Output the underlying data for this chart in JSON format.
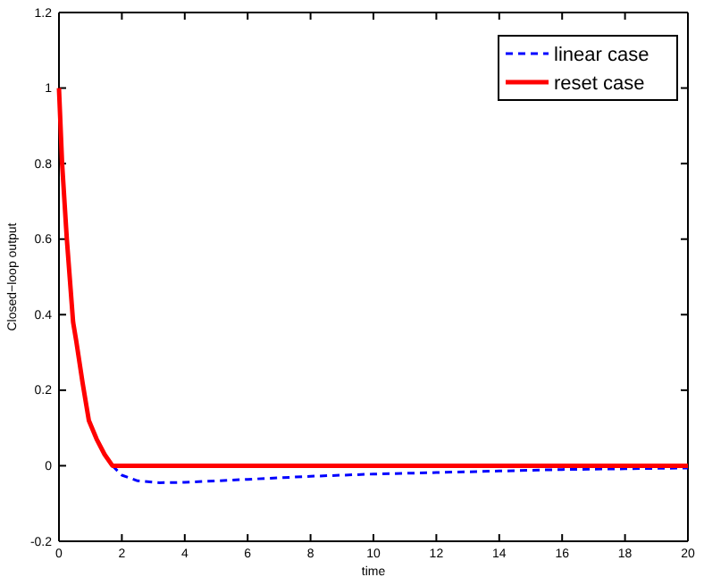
{
  "chart_data": {
    "type": "line",
    "xlabel": "time",
    "ylabel": "Closed−loop output",
    "xlim": [
      0,
      20
    ],
    "ylim": [
      -0.2,
      1.2
    ],
    "xticks": [
      0,
      2,
      4,
      6,
      8,
      10,
      12,
      14,
      16,
      18,
      20
    ],
    "yticks": [
      -0.2,
      0,
      0.2,
      0.4,
      0.6,
      0.8,
      1,
      1.2
    ],
    "legend": "top right",
    "series": [
      {
        "name": "linear case",
        "color": "#0000ff",
        "line_style": "dashed",
        "x": [
          1.7,
          2,
          2.5,
          3.2,
          4,
          6,
          8,
          10,
          12,
          14,
          16,
          18,
          20
        ],
        "values": [
          0,
          -0.025,
          -0.04,
          -0.045,
          -0.044,
          -0.036,
          -0.028,
          -0.022,
          -0.018,
          -0.014,
          -0.01,
          -0.008,
          -0.006
        ]
      },
      {
        "name": "reset case",
        "color": "#ff0000",
        "line_style": "solid",
        "x": [
          0,
          0.1,
          0.25,
          0.45,
          0.55,
          0.75,
          0.95,
          1.2,
          1.45,
          1.7,
          20
        ],
        "values": [
          1,
          0.8,
          0.6,
          0.38,
          0.33,
          0.22,
          0.12,
          0.07,
          0.03,
          0,
          0
        ]
      }
    ]
  }
}
